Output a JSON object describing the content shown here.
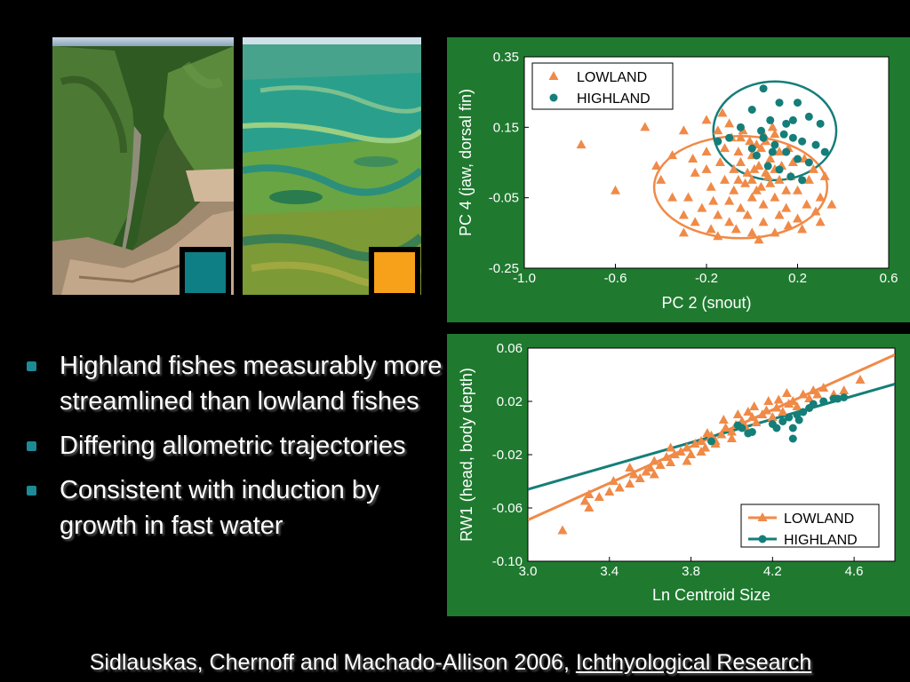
{
  "colors": {
    "lowland": "#f08a47",
    "highland": "#157e79",
    "panel_bg": "#1f7a2f",
    "swatch_highland": "#0f7f86",
    "swatch_lowland": "#f7a01a"
  },
  "photos": [
    {
      "name": "canyon-photo",
      "description_icon": "highland-river-canyon-image"
    },
    {
      "name": "wetland-photo",
      "description_icon": "lowland-floodplain-image"
    }
  ],
  "bullets": [
    "Highland fishes measurably more streamlined than lowland fishes",
    "Differing allometric trajectories",
    "Consistent with induction by growth in fast water"
  ],
  "citation": {
    "text": "Sidlauskas, Chernoff and Machado-Allison 2006, ",
    "journal": "Ichthyological Research"
  },
  "chart_data": [
    {
      "type": "scatter",
      "title": "",
      "xlabel": "PC 2 (snout)",
      "ylabel": "PC 4 (jaw, dorsal fin)",
      "xlim": [
        -1.0,
        0.6
      ],
      "ylim": [
        -0.25,
        0.35
      ],
      "xticks": [
        "-1.0",
        "-0.6",
        "-0.2",
        "0.2",
        "0.6"
      ],
      "xtick_values": [
        -1.0,
        -0.6,
        -0.2,
        0.2,
        0.6
      ],
      "yticks": [
        "0.35",
        "0.15",
        "-0.05",
        "-0.25"
      ],
      "ytick_values": [
        0.35,
        0.15,
        -0.05,
        -0.25
      ],
      "legend_position": "top-left",
      "series": [
        {
          "name": "LOWLAND",
          "marker": "triangle",
          "points": [
            [
              -0.75,
              0.1
            ],
            [
              -0.47,
              0.15
            ],
            [
              -0.6,
              -0.03
            ],
            [
              -0.42,
              0.04
            ],
            [
              -0.35,
              0.07
            ],
            [
              -0.3,
              0.14
            ],
            [
              -0.2,
              0.17
            ],
            [
              -0.15,
              0.14
            ],
            [
              -0.1,
              0.16
            ],
            [
              -0.05,
              0.12
            ],
            [
              0.02,
              0.1
            ],
            [
              0.05,
              0.13
            ],
            [
              -0.25,
              0.02
            ],
            [
              -0.28,
              -0.05
            ],
            [
              -0.18,
              -0.02
            ],
            [
              -0.12,
              0.0
            ],
            [
              -0.08,
              0.03
            ],
            [
              -0.05,
              0.05
            ],
            [
              -0.02,
              0.02
            ],
            [
              0.0,
              0.0
            ],
            [
              0.03,
              0.04
            ],
            [
              0.06,
              0.02
            ],
            [
              0.08,
              -0.01
            ],
            [
              0.1,
              0.03
            ],
            [
              0.12,
              0.0
            ],
            [
              0.15,
              -0.03
            ],
            [
              0.18,
              0.05
            ],
            [
              -0.22,
              -0.08
            ],
            [
              -0.15,
              -0.1
            ],
            [
              -0.1,
              -0.06
            ],
            [
              -0.05,
              -0.08
            ],
            [
              0.0,
              -0.05
            ],
            [
              0.05,
              -0.07
            ],
            [
              0.1,
              -0.05
            ],
            [
              0.15,
              -0.08
            ],
            [
              0.2,
              -0.03
            ],
            [
              0.25,
              0.0
            ],
            [
              0.3,
              -0.05
            ],
            [
              0.35,
              -0.07
            ],
            [
              -0.3,
              -0.1
            ],
            [
              -0.35,
              -0.05
            ],
            [
              -0.4,
              0.0
            ],
            [
              -0.2,
              0.08
            ],
            [
              -0.12,
              0.09
            ],
            [
              -0.06,
              0.08
            ],
            [
              0.0,
              0.07
            ],
            [
              0.04,
              0.09
            ],
            [
              0.08,
              0.06
            ],
            [
              0.12,
              0.08
            ],
            [
              -0.25,
              -0.12
            ],
            [
              -0.18,
              -0.14
            ],
            [
              -0.1,
              -0.12
            ],
            [
              -0.02,
              -0.1
            ],
            [
              0.05,
              -0.12
            ],
            [
              0.12,
              -0.1
            ],
            [
              0.2,
              -0.11
            ],
            [
              0.28,
              -0.09
            ],
            [
              -0.3,
              -0.15
            ],
            [
              -0.15,
              -0.16
            ],
            [
              0.0,
              -0.15
            ],
            [
              0.1,
              -0.15
            ],
            [
              0.22,
              -0.14
            ],
            [
              -0.08,
              -0.03
            ],
            [
              -0.03,
              -0.01
            ],
            [
              0.02,
              -0.03
            ],
            [
              0.07,
              0.01
            ],
            [
              0.13,
              0.04
            ],
            [
              0.17,
              0.01
            ],
            [
              -0.14,
              0.05
            ],
            [
              -0.2,
              0.03
            ],
            [
              -0.26,
              0.06
            ],
            [
              0.23,
              0.06
            ],
            [
              0.27,
              0.03
            ],
            [
              0.32,
              0.01
            ],
            [
              -0.09,
              0.12
            ],
            [
              -0.01,
              0.11
            ],
            [
              0.06,
              0.11
            ],
            [
              0.1,
              0.13
            ],
            [
              0.16,
              0.09
            ],
            [
              -0.17,
              -0.06
            ],
            [
              -0.07,
              -0.14
            ],
            [
              0.03,
              -0.17
            ],
            [
              0.16,
              -0.13
            ],
            [
              0.24,
              -0.07
            ],
            [
              0.3,
              -0.12
            ],
            [
              -0.04,
              0.14
            ],
            [
              0.09,
              0.15
            ],
            [
              -0.13,
              0.19
            ],
            [
              0.01,
              0.03
            ],
            [
              -0.06,
              0.0
            ],
            [
              0.04,
              -0.02
            ]
          ]
        },
        {
          "name": "HIGHLAND",
          "marker": "circle",
          "points": [
            [
              0.05,
              0.26
            ],
            [
              0.12,
              0.22
            ],
            [
              0.2,
              0.22
            ],
            [
              0.25,
              0.18
            ],
            [
              0.3,
              0.16
            ],
            [
              0.0,
              0.2
            ],
            [
              0.08,
              0.17
            ],
            [
              -0.05,
              0.15
            ],
            [
              -0.1,
              0.12
            ],
            [
              -0.15,
              0.11
            ],
            [
              0.15,
              0.16
            ],
            [
              0.18,
              0.12
            ],
            [
              0.22,
              0.11
            ],
            [
              0.28,
              0.1
            ],
            [
              0.32,
              0.08
            ],
            [
              0.05,
              0.12
            ],
            [
              0.1,
              0.1
            ],
            [
              0.15,
              0.08
            ],
            [
              0.2,
              0.06
            ],
            [
              0.25,
              0.05
            ],
            [
              0.02,
              0.07
            ],
            [
              0.07,
              0.04
            ],
            [
              0.12,
              0.03
            ],
            [
              0.17,
              0.01
            ],
            [
              0.22,
              0.0
            ],
            [
              0.0,
              0.09
            ],
            [
              0.04,
              0.14
            ],
            [
              0.18,
              0.17
            ],
            [
              0.14,
              0.13
            ],
            [
              0.09,
              0.08
            ]
          ]
        }
      ],
      "ellipses": [
        {
          "series": "LOWLAND",
          "center": [
            -0.05,
            -0.02
          ],
          "rx": 0.38,
          "ry": 0.145
        },
        {
          "series": "HIGHLAND",
          "center": [
            0.1,
            0.14
          ],
          "rx": 0.27,
          "ry": 0.14
        }
      ]
    },
    {
      "type": "scatter",
      "title": "",
      "xlabel": "Ln Centroid Size",
      "ylabel": "RW1  (head, body depth)",
      "xlim": [
        3.0,
        4.8
      ],
      "ylim": [
        -0.1,
        0.06
      ],
      "xticks": [
        "3.0",
        "3.4",
        "3.8",
        "4.2",
        "4.6"
      ],
      "xtick_values": [
        3.0,
        3.4,
        3.8,
        4.2,
        4.6
      ],
      "yticks": [
        "0.06",
        "0.02",
        "-0.02",
        "-0.06",
        "-0.10"
      ],
      "ytick_values": [
        0.06,
        0.02,
        -0.02,
        -0.06,
        -0.1
      ],
      "legend_position": "bottom-right",
      "series": [
        {
          "name": "LOWLAND",
          "marker": "triangle",
          "points": [
            [
              3.17,
              -0.077
            ],
            [
              3.28,
              -0.055
            ],
            [
              3.3,
              -0.06
            ],
            [
              3.3,
              -0.05
            ],
            [
              3.35,
              -0.052
            ],
            [
              3.4,
              -0.048
            ],
            [
              3.45,
              -0.045
            ],
            [
              3.42,
              -0.04
            ],
            [
              3.5,
              -0.042
            ],
            [
              3.52,
              -0.035
            ],
            [
              3.55,
              -0.038
            ],
            [
              3.58,
              -0.033
            ],
            [
              3.6,
              -0.03
            ],
            [
              3.62,
              -0.035
            ],
            [
              3.65,
              -0.028
            ],
            [
              3.68,
              -0.022
            ],
            [
              3.7,
              -0.026
            ],
            [
              3.72,
              -0.02
            ],
            [
              3.75,
              -0.018
            ],
            [
              3.78,
              -0.015
            ],
            [
              3.8,
              -0.02
            ],
            [
              3.82,
              -0.012
            ],
            [
              3.85,
              -0.01
            ],
            [
              3.87,
              -0.015
            ],
            [
              3.9,
              -0.006
            ],
            [
              3.92,
              -0.01
            ],
            [
              3.95,
              -0.005
            ],
            [
              3.97,
              0.0
            ],
            [
              4.0,
              -0.003
            ],
            [
              4.02,
              0.002
            ],
            [
              4.05,
              0.005
            ],
            [
              4.07,
              0.0
            ],
            [
              4.1,
              0.008
            ],
            [
              4.12,
              0.004
            ],
            [
              4.15,
              0.01
            ],
            [
              4.17,
              0.013
            ],
            [
              4.2,
              0.008
            ],
            [
              4.22,
              0.015
            ],
            [
              4.25,
              0.012
            ],
            [
              4.28,
              0.018
            ],
            [
              4.3,
              0.02
            ],
            [
              4.32,
              0.016
            ],
            [
              4.35,
              0.025
            ],
            [
              4.38,
              0.022
            ],
            [
              4.4,
              0.028
            ],
            [
              4.42,
              0.025
            ],
            [
              4.45,
              0.03
            ],
            [
              4.5,
              0.025
            ],
            [
              4.55,
              0.028
            ],
            [
              4.63,
              0.036
            ],
            [
              3.78,
              -0.025
            ],
            [
              3.85,
              -0.018
            ],
            [
              3.92,
              -0.012
            ],
            [
              4.0,
              -0.008
            ],
            [
              4.08,
              0.012
            ],
            [
              4.18,
              0.02
            ],
            [
              4.27,
              0.026
            ],
            [
              3.62,
              -0.025
            ],
            [
              3.7,
              -0.015
            ],
            [
              3.96,
              0.006
            ],
            [
              4.11,
              0.016
            ],
            [
              3.5,
              -0.03
            ],
            [
              3.88,
              -0.004
            ],
            [
              4.03,
              0.01
            ],
            [
              4.23,
              0.021
            ]
          ]
        },
        {
          "name": "HIGHLAND",
          "marker": "circle",
          "points": [
            [
              3.9,
              -0.01
            ],
            [
              4.03,
              0.002
            ],
            [
              4.05,
              0.0
            ],
            [
              4.1,
              -0.003
            ],
            [
              4.2,
              0.003
            ],
            [
              4.25,
              0.005
            ],
            [
              4.28,
              0.008
            ],
            [
              4.3,
              0.0
            ],
            [
              4.32,
              0.01
            ],
            [
              4.35,
              0.012
            ],
            [
              4.38,
              0.015
            ],
            [
              4.4,
              0.018
            ],
            [
              4.45,
              0.02
            ],
            [
              4.5,
              0.022
            ],
            [
              4.52,
              0.022
            ],
            [
              4.55,
              0.023
            ],
            [
              4.3,
              -0.008
            ],
            [
              4.22,
              0.0
            ],
            [
              4.08,
              -0.004
            ],
            [
              4.33,
              0.006
            ]
          ]
        }
      ],
      "regression_lines": [
        {
          "series": "LOWLAND",
          "from": [
            3.0,
            -0.069
          ],
          "to": [
            4.8,
            0.055
          ]
        },
        {
          "series": "HIGHLAND",
          "from": [
            3.0,
            -0.046
          ],
          "to": [
            4.8,
            0.033
          ]
        }
      ]
    }
  ]
}
